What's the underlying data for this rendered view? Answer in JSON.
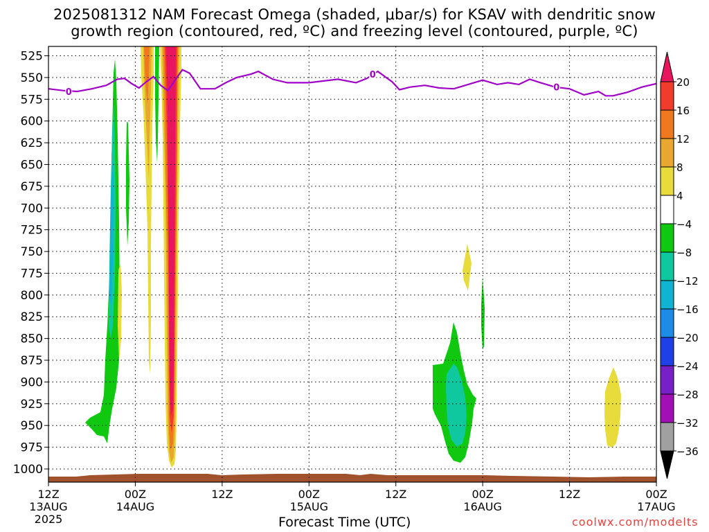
{
  "header": {
    "title_line1": "2025081312 NAM Forecast Omega (shaded, μbar/s) for KSAV with dendritic snow",
    "title_line2": "growth region (contoured, red, ºC) and freezing level (contoured, purple, ºC)"
  },
  "footer": {
    "xlabel": "Forecast Time (UTC)",
    "credit": "coolwx.com/modelts"
  },
  "chart_data": {
    "type": "contour",
    "x_axis": {
      "range_hours": [
        0,
        84
      ],
      "ticks": [
        {
          "hour": 0,
          "line1": "12Z",
          "line2": "13AUG",
          "line3": "2025"
        },
        {
          "hour": 12,
          "line1": "00Z",
          "line2": "14AUG",
          "line3": ""
        },
        {
          "hour": 24,
          "line1": "12Z",
          "line2": "",
          "line3": ""
        },
        {
          "hour": 36,
          "line1": "00Z",
          "line2": "15AUG",
          "line3": ""
        },
        {
          "hour": 48,
          "line1": "12Z",
          "line2": "",
          "line3": ""
        },
        {
          "hour": 60,
          "line1": "00Z",
          "line2": "16AUG",
          "line3": ""
        },
        {
          "hour": 72,
          "line1": "12Z",
          "line2": "",
          "line3": ""
        },
        {
          "hour": 84,
          "line1": "00Z",
          "line2": "17AUG",
          "line3": ""
        }
      ]
    },
    "y_axis": {
      "units": "mb",
      "range": [
        1000,
        515
      ],
      "ticks": [
        525,
        550,
        575,
        600,
        625,
        650,
        675,
        700,
        725,
        750,
        775,
        800,
        825,
        850,
        875,
        900,
        925,
        950,
        975,
        1000
      ]
    },
    "colorbar": {
      "labels": [
        "20",
        "16",
        "12",
        "8",
        "4",
        "−4",
        "−8",
        "−12",
        "−16",
        "−20",
        "−24",
        "−28",
        "−32",
        "−36"
      ],
      "colors": [
        "#e8165f",
        "#f03c2c",
        "#f0781e",
        "#e8a830",
        "#e8dc3c",
        "#ffffff",
        "#10c810",
        "#10c8a0",
        "#10b4d2",
        "#1e8ce6",
        "#1e40e6",
        "#7820c8",
        "#a010b4",
        "#a0a0a0",
        "#000000"
      ]
    },
    "freezing_level": {
      "label": "0",
      "color": "#a000c8",
      "points": [
        [
          0,
          563
        ],
        [
          2,
          565
        ],
        [
          4,
          566
        ],
        [
          6,
          563
        ],
        [
          8,
          559
        ],
        [
          9.5,
          552
        ],
        [
          10.5,
          551
        ],
        [
          11.5,
          557
        ],
        [
          12.5,
          562
        ],
        [
          13.5,
          555
        ],
        [
          14.5,
          549
        ],
        [
          15.5,
          559
        ],
        [
          16.5,
          565
        ],
        [
          18.5,
          541
        ],
        [
          19.5,
          545
        ],
        [
          21,
          563
        ],
        [
          23,
          563
        ],
        [
          24.5,
          556
        ],
        [
          26,
          550
        ],
        [
          28,
          546
        ],
        [
          29,
          543
        ],
        [
          31,
          552
        ],
        [
          33,
          556
        ],
        [
          36,
          556
        ],
        [
          38,
          554
        ],
        [
          40,
          552
        ],
        [
          42.5,
          556
        ],
        [
          44,
          551
        ],
        [
          45.5,
          543
        ],
        [
          46.5,
          549
        ],
        [
          47.5,
          555
        ],
        [
          48.5,
          564
        ],
        [
          50,
          561
        ],
        [
          52,
          559
        ],
        [
          54,
          562
        ],
        [
          56,
          563
        ],
        [
          58,
          558
        ],
        [
          60,
          553
        ],
        [
          62,
          558
        ],
        [
          63.5,
          556
        ],
        [
          65,
          558
        ],
        [
          66.5,
          552
        ],
        [
          68,
          556
        ],
        [
          70,
          561
        ],
        [
          72,
          563
        ],
        [
          74,
          570
        ],
        [
          76,
          566
        ],
        [
          77,
          571
        ],
        [
          78,
          571
        ],
        [
          80,
          567
        ],
        [
          82,
          561
        ],
        [
          84,
          557
        ]
      ]
    },
    "omega_regions": [
      {
        "value": "-4 to -8",
        "color": "#10c810"
      },
      {
        "value": "-8 to -12",
        "color": "#10c8a0"
      },
      {
        "value": "-12 to -16",
        "color": "#10b4d2"
      },
      {
        "value": "4 to 8",
        "color": "#e8dc3c"
      },
      {
        "value": "8 to 12",
        "color": "#e8a830"
      },
      {
        "value": "12 to 16",
        "color": "#f0781e"
      },
      {
        "value": "16 to 20",
        "color": "#f03c2c"
      },
      {
        "value": "> 20",
        "color": "#e8165f"
      }
    ],
    "terrain_color": "#a0522d"
  }
}
